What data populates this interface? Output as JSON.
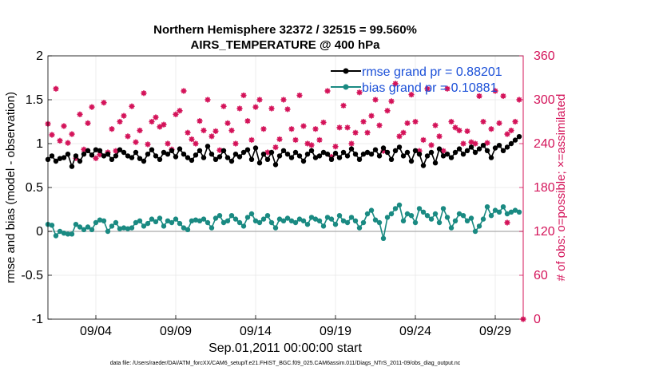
{
  "chart_data": {
    "type": "line",
    "title": "Northern Hemisphere 32372 / 32515 = 99.560%",
    "subtitle": "AIRS_TEMPERATURE @ 400 hPa",
    "xlabel": "Sep.01,2011 00:00:00 start",
    "ylabel_left": "rmse and bias (model - observation)",
    "ylabel_right": "# of obs: o=possible; ×=assimilated",
    "ylim_left": [
      -1,
      2
    ],
    "ylim_right": [
      0,
      360
    ],
    "xlim": [
      1.0,
      30.75
    ],
    "x_unit": "day of September 2011",
    "left_ticks": [
      "-1",
      "-0.5",
      "0",
      "0.5",
      "1",
      "1.5",
      "2"
    ],
    "left_tick_values": [
      -1,
      -0.5,
      0,
      0.5,
      1,
      1.5,
      2
    ],
    "right_ticks": [
      "0",
      "60",
      "120",
      "180",
      "240",
      "300",
      "360"
    ],
    "right_tick_values": [
      0,
      60,
      120,
      180,
      240,
      300,
      360
    ],
    "x_ticks": [
      "09/04",
      "09/09",
      "09/14",
      "09/19",
      "09/24",
      "09/29"
    ],
    "x_tick_values": [
      4,
      9,
      14,
      19,
      24,
      29
    ],
    "grid": true,
    "legend_position": "top-right",
    "footer": "data file: /Users/raeder/DAI/ATM_forcXX/CAM6_setup/f.e21.FHIST_BGC.f09_025.CAM6assim.011/Diags_NTrS_2011-09/obs_diag_output.nc",
    "colors": {
      "rmse": "#000000",
      "bias": "#1a8a82",
      "obs": "#d4145a",
      "zero_line": "#b8b8b8",
      "legend_text": "#1a4fd8"
    },
    "x": [
      1.0,
      1.25,
      1.5,
      1.75,
      2.0,
      2.25,
      2.5,
      2.75,
      3.0,
      3.25,
      3.5,
      3.75,
      4.0,
      4.25,
      4.5,
      4.75,
      5.0,
      5.25,
      5.5,
      5.75,
      6.0,
      6.25,
      6.5,
      6.75,
      7.0,
      7.25,
      7.5,
      7.75,
      8.0,
      8.25,
      8.5,
      8.75,
      9.0,
      9.25,
      9.5,
      9.75,
      10.0,
      10.25,
      10.5,
      10.75,
      11.0,
      11.25,
      11.5,
      11.75,
      12.0,
      12.25,
      12.5,
      12.75,
      13.0,
      13.25,
      13.5,
      13.75,
      14.0,
      14.25,
      14.5,
      14.75,
      15.0,
      15.25,
      15.5,
      15.75,
      16.0,
      16.25,
      16.5,
      16.75,
      17.0,
      17.25,
      17.5,
      17.75,
      18.0,
      18.25,
      18.5,
      18.75,
      19.0,
      19.25,
      19.5,
      19.75,
      20.0,
      20.25,
      20.5,
      20.75,
      21.0,
      21.25,
      21.5,
      21.75,
      22.0,
      22.25,
      22.5,
      22.75,
      23.0,
      23.25,
      23.5,
      23.75,
      24.0,
      24.25,
      24.5,
      24.75,
      25.0,
      25.25,
      25.5,
      25.75,
      26.0,
      26.25,
      26.5,
      26.75,
      27.0,
      27.25,
      27.5,
      27.75,
      28.0,
      28.25,
      28.5,
      28.75,
      29.0,
      29.25,
      29.5,
      29.75,
      30.0,
      30.25,
      30.5
    ],
    "series": [
      {
        "name": "rmse grand pr = 0.88201",
        "marker": "dot",
        "axis": "left",
        "values": [
          0.82,
          0.86,
          0.8,
          0.83,
          0.84,
          0.88,
          0.74,
          0.86,
          0.8,
          0.88,
          0.92,
          0.87,
          0.93,
          0.92,
          0.86,
          0.88,
          0.82,
          0.86,
          0.93,
          0.9,
          0.86,
          0.84,
          0.9,
          0.83,
          0.8,
          0.88,
          0.93,
          0.86,
          0.82,
          0.9,
          0.88,
          0.92,
          0.85,
          0.94,
          0.88,
          0.84,
          0.81,
          0.87,
          0.92,
          0.84,
          0.97,
          0.88,
          0.82,
          0.85,
          0.92,
          0.84,
          0.8,
          0.88,
          0.85,
          0.9,
          0.93,
          0.82,
          0.95,
          0.78,
          0.88,
          0.82,
          0.9,
          0.76,
          0.86,
          0.92,
          0.88,
          0.84,
          0.9,
          0.86,
          0.8,
          0.88,
          0.92,
          0.84,
          0.86,
          0.9,
          0.88,
          0.82,
          0.89,
          0.84,
          0.9,
          0.86,
          0.94,
          0.88,
          0.82,
          0.88,
          0.9,
          0.88,
          0.93,
          0.86,
          0.95,
          0.9,
          0.82,
          0.92,
          0.96,
          0.86,
          0.9,
          0.8,
          0.92,
          0.88,
          0.75,
          0.86,
          0.9,
          0.78,
          0.94,
          0.86,
          0.88,
          0.84,
          0.9,
          0.94,
          0.88,
          0.92,
          0.96,
          0.9,
          0.94,
          0.98,
          0.92,
          0.84,
          0.95,
          0.98,
          0.92,
          0.96,
          1.0,
          1.04,
          1.08
        ]
      },
      {
        "name": "bias grand pr = 0.10881",
        "marker": "dot",
        "axis": "left",
        "values": [
          0.08,
          0.07,
          -0.05,
          0.0,
          -0.02,
          -0.03,
          -0.03,
          0.08,
          0.05,
          0.02,
          0.05,
          0.02,
          0.1,
          0.13,
          0.12,
          0.0,
          0.06,
          0.1,
          0.03,
          0.04,
          0.03,
          0.04,
          0.1,
          0.12,
          0.06,
          0.09,
          0.14,
          0.11,
          0.15,
          0.06,
          0.12,
          0.1,
          0.14,
          0.09,
          0.04,
          0.02,
          0.12,
          0.13,
          0.12,
          0.14,
          0.1,
          0.04,
          0.15,
          0.18,
          0.1,
          0.12,
          0.18,
          0.14,
          0.1,
          0.06,
          0.16,
          0.2,
          0.12,
          0.1,
          0.14,
          0.18,
          0.1,
          0.04,
          0.14,
          0.12,
          0.15,
          0.12,
          0.1,
          0.14,
          0.12,
          0.08,
          0.16,
          0.14,
          0.12,
          0.06,
          0.16,
          0.14,
          0.08,
          0.18,
          0.12,
          0.1,
          0.16,
          0.12,
          0.04,
          0.1,
          0.2,
          0.24,
          0.13,
          0.1,
          -0.08,
          0.16,
          0.2,
          0.26,
          0.3,
          0.12,
          0.2,
          0.18,
          0.1,
          0.26,
          0.22,
          0.18,
          0.14,
          0.2,
          0.1,
          0.26,
          0.16,
          0.04,
          0.12,
          0.2,
          0.18,
          0.12,
          0.15,
          0.0,
          0.06,
          0.14,
          0.28,
          0.18,
          0.24,
          0.22,
          0.28,
          0.2,
          0.22,
          0.24,
          0.22
        ]
      },
      {
        "name": "# of obs possible / assimilated",
        "marker": "star",
        "axis": "right",
        "values": [
          267,
          252,
          315,
          244,
          264,
          241,
          253,
          220,
          280,
          232,
          268,
          290,
          220,
          225,
          296,
          228,
          260,
          230,
          270,
          278,
          250,
          291,
          242,
          258,
          309,
          239,
          270,
          276,
          263,
          266,
          240,
          232,
          280,
          285,
          312,
          255,
          246,
          240,
          271,
          258,
          300,
          250,
          257,
          231,
          291,
          268,
          258,
          240,
          288,
          306,
          271,
          245,
          290,
          300,
          260,
          228,
          288,
          235,
          246,
          300,
          287,
          260,
          245,
          306,
          264,
          240,
          238,
          260,
          245,
          269,
          312,
          222,
          236,
          262,
          292,
          262,
          240,
          255,
          310,
          270,
          255,
          278,
          300,
          265,
          230,
          285,
          298,
          322,
          250,
          255,
          268,
          307,
          270,
          230,
          245,
          315,
          238,
          265,
          250,
          230,
          315,
          270,
          262,
          258,
          240,
          257,
          242,
          240,
          305,
          270,
          241,
          260,
          312,
          268,
          305,
          253,
          258,
          270,
          300
        ]
      }
    ],
    "extra_points": [
      {
        "x": 30.75,
        "axis": "right",
        "value": 0
      },
      {
        "x": 29.75,
        "axis": "left",
        "value": 0.1
      }
    ]
  }
}
